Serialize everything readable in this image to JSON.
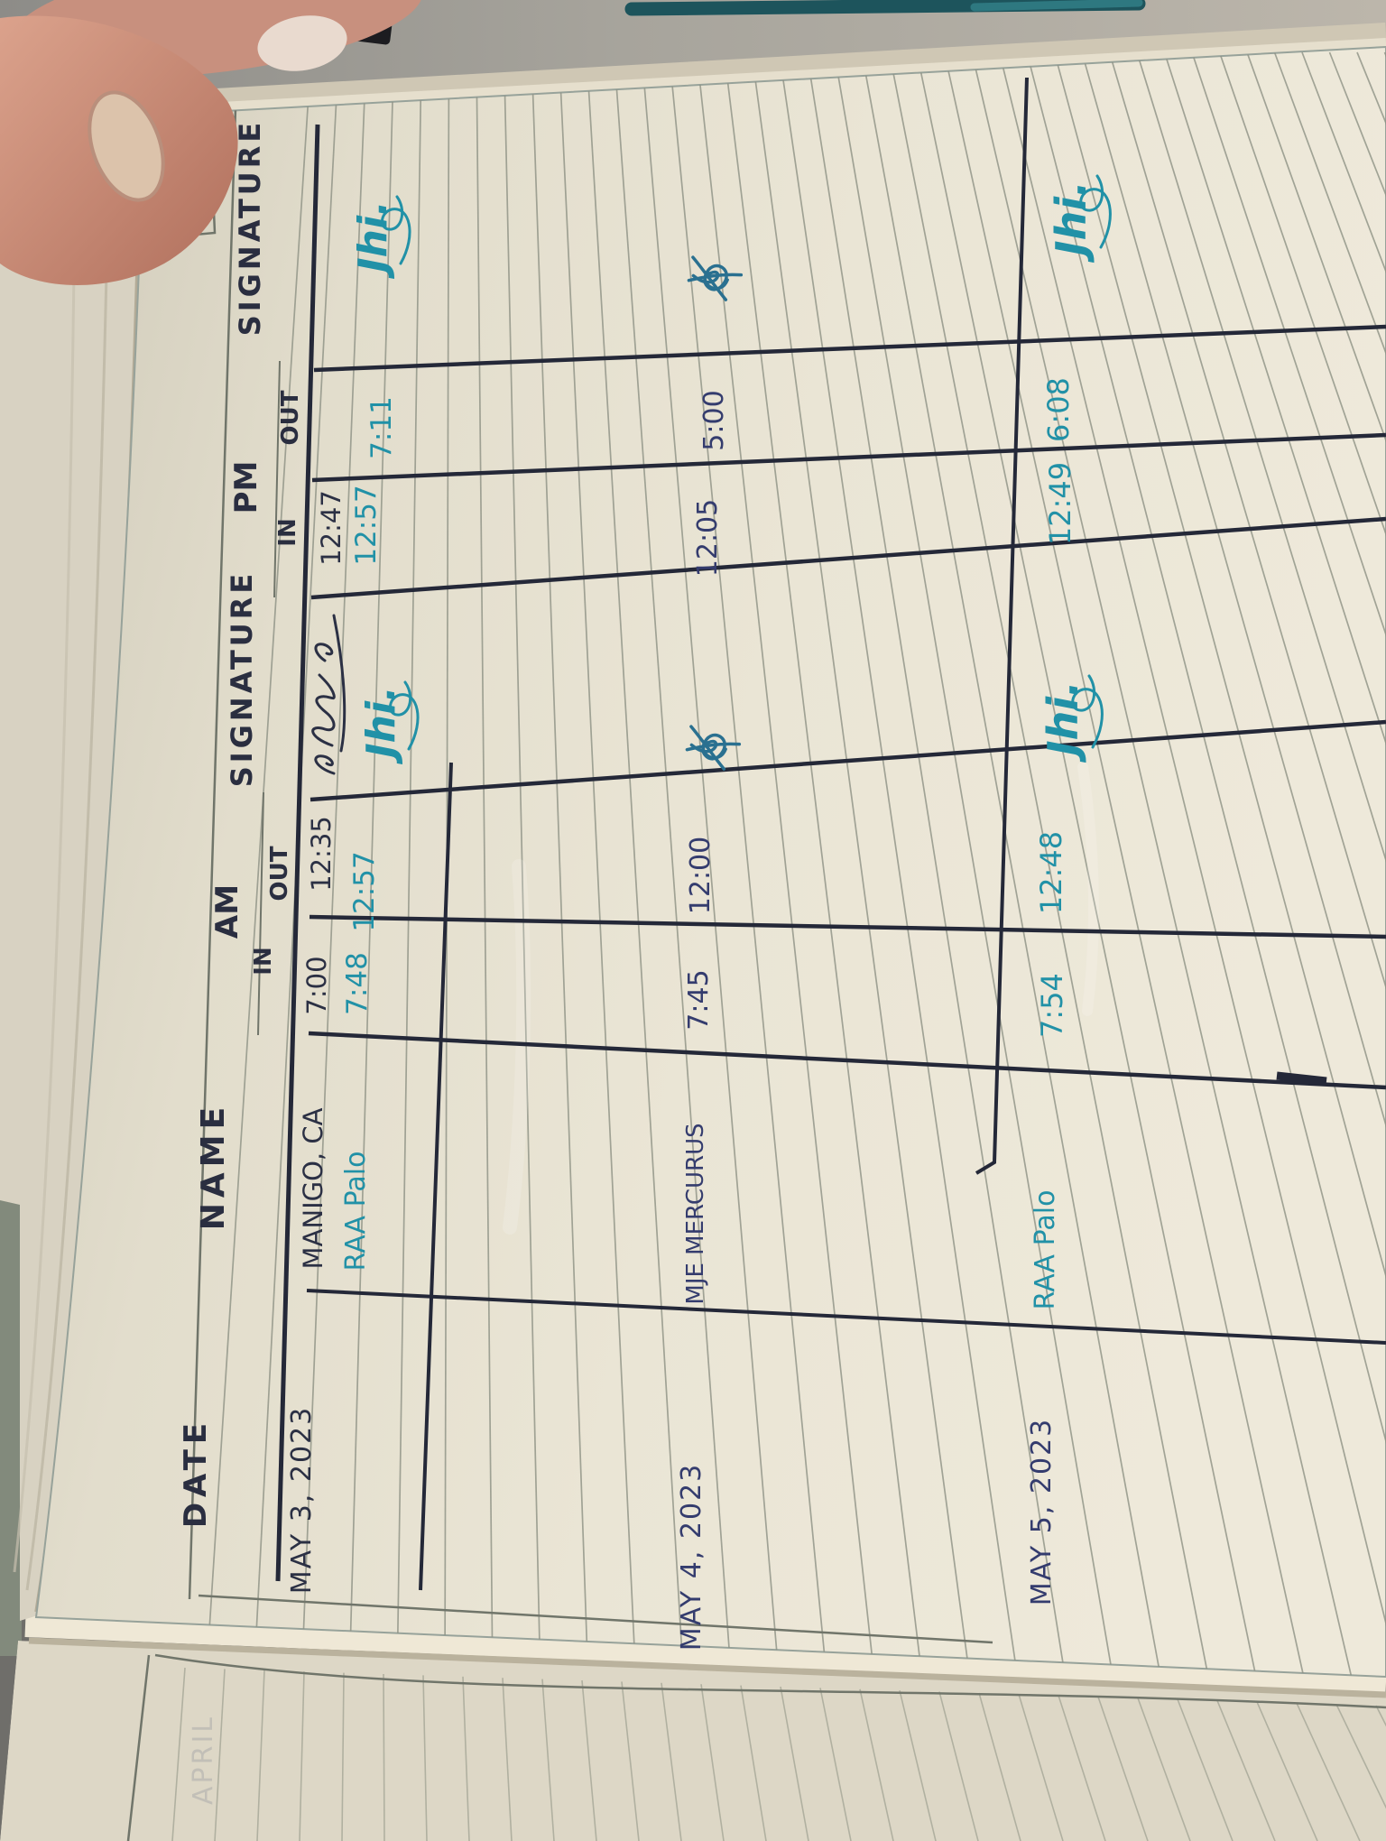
{
  "logbook": {
    "header": {
      "date": "DATE",
      "name": "NAME",
      "am": "AM",
      "pm": "PM",
      "in": "IN",
      "out": "OUT",
      "signature": "SIGNATURE"
    },
    "rows": [
      {
        "date": "MAY 3, 2023",
        "entries": [
          {
            "name": "MANIGO, CA",
            "ink": "dark",
            "am_in": "7:00",
            "am_out": "12:35",
            "am_signature": "",
            "pm_in": "12:47",
            "pm_out": "",
            "pm_signature": ""
          },
          {
            "name": "RAA Palo",
            "ink": "teal",
            "am_in": "7:48",
            "am_out": "12:57",
            "am_signature": "Jhi.",
            "pm_in": "12:57",
            "pm_out": "7:11",
            "pm_signature": "Jhi."
          }
        ]
      },
      {
        "date": "MAY 4, 2023",
        "entries": [
          {
            "name": "MJE MERCURUS",
            "ink": "blue",
            "am_in": "7:45",
            "am_out": "12:00",
            "am_signature": "",
            "pm_in": "12:05",
            "pm_out": "5:00",
            "pm_signature": ""
          }
        ]
      },
      {
        "date": "MAY 5, 2023",
        "entries": [
          {
            "name": "RAA Palo",
            "ink": "teal",
            "am_in": "7:54",
            "am_out": "12:48",
            "am_signature": "Jhi.",
            "pm_in": "12:49",
            "pm_out": "6:08",
            "pm_signature": "Jhi."
          }
        ]
      }
    ]
  },
  "underlying_page": {
    "ghost_text": "APRIL"
  },
  "colors": {
    "paper": "#e7e2d1",
    "ruled_line": "#8e9285",
    "pen_line": "#242838",
    "ink_dark": "#2b3044",
    "ink_blue": "#343c6e",
    "ink_teal": "#2191a7",
    "desk": "#a09d96",
    "teal_object": "#1d545c"
  }
}
